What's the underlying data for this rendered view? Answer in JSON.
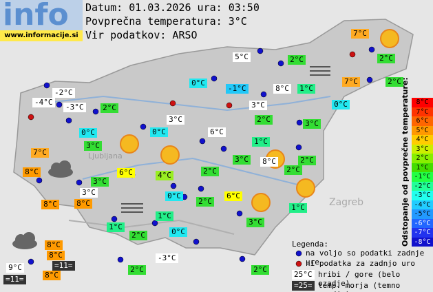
{
  "header": {
    "logo": "info",
    "url": "www.informacije.si",
    "date_line": "Datum: 01.03.2026 ura: 03:50",
    "avg_line": "Povprečna temperatura: 3°C",
    "source_line": "Vir podatkov: ARSO"
  },
  "places": [
    "Ljubljana",
    "Zagreb"
  ],
  "stations": [
    "7°C",
    "5°C",
    "2°C",
    "2°C",
    "7°C",
    "2°C",
    "0°C",
    "-1°C",
    "8°C",
    "1°C",
    "-2°C",
    "-4°C",
    "-3°C",
    "2°C",
    "3°C",
    "0°C",
    "3°C",
    "2°C",
    "3°C",
    "0°C",
    "0°C",
    "6°C",
    "3°C",
    "1°C",
    "7°C",
    "3°C",
    "8°C",
    "2°C",
    "8°C",
    "6°C",
    "4°C",
    "2°C",
    "2°C",
    "3°C",
    "3°C",
    "0°C",
    "6°C",
    "2°C",
    "8°C",
    "8°C",
    "1°C",
    "1°C",
    "3°C",
    "1°C",
    "0°C",
    "2°C",
    "8°C",
    "-3°C",
    "8°C",
    "=11=",
    "9°C",
    "2°C",
    "2°C",
    "8°C",
    "=11="
  ],
  "scale": {
    "title": "Odstopanje od povprečne temperature:",
    "labels": [
      "8°C",
      "7°C",
      "6°C",
      "5°C",
      "4°C",
      "3°C",
      "2°C",
      "1°C",
      "-1°C",
      "-2°C",
      "-3°C",
      "-4°C",
      "-5°C",
      "-6°C",
      "-7°C",
      "-8°C"
    ]
  },
  "legend": {
    "title": "Legenda:",
    "available": "na voljo so podatki zadnje ure",
    "missing": "ni podatka za zadnjo uro",
    "mountain_sample": "25°C",
    "mountain": "hribi / gore (belo ozadje)",
    "sea_sample": "=25=",
    "sea": "temp. morja (temno ozadje)"
  }
}
